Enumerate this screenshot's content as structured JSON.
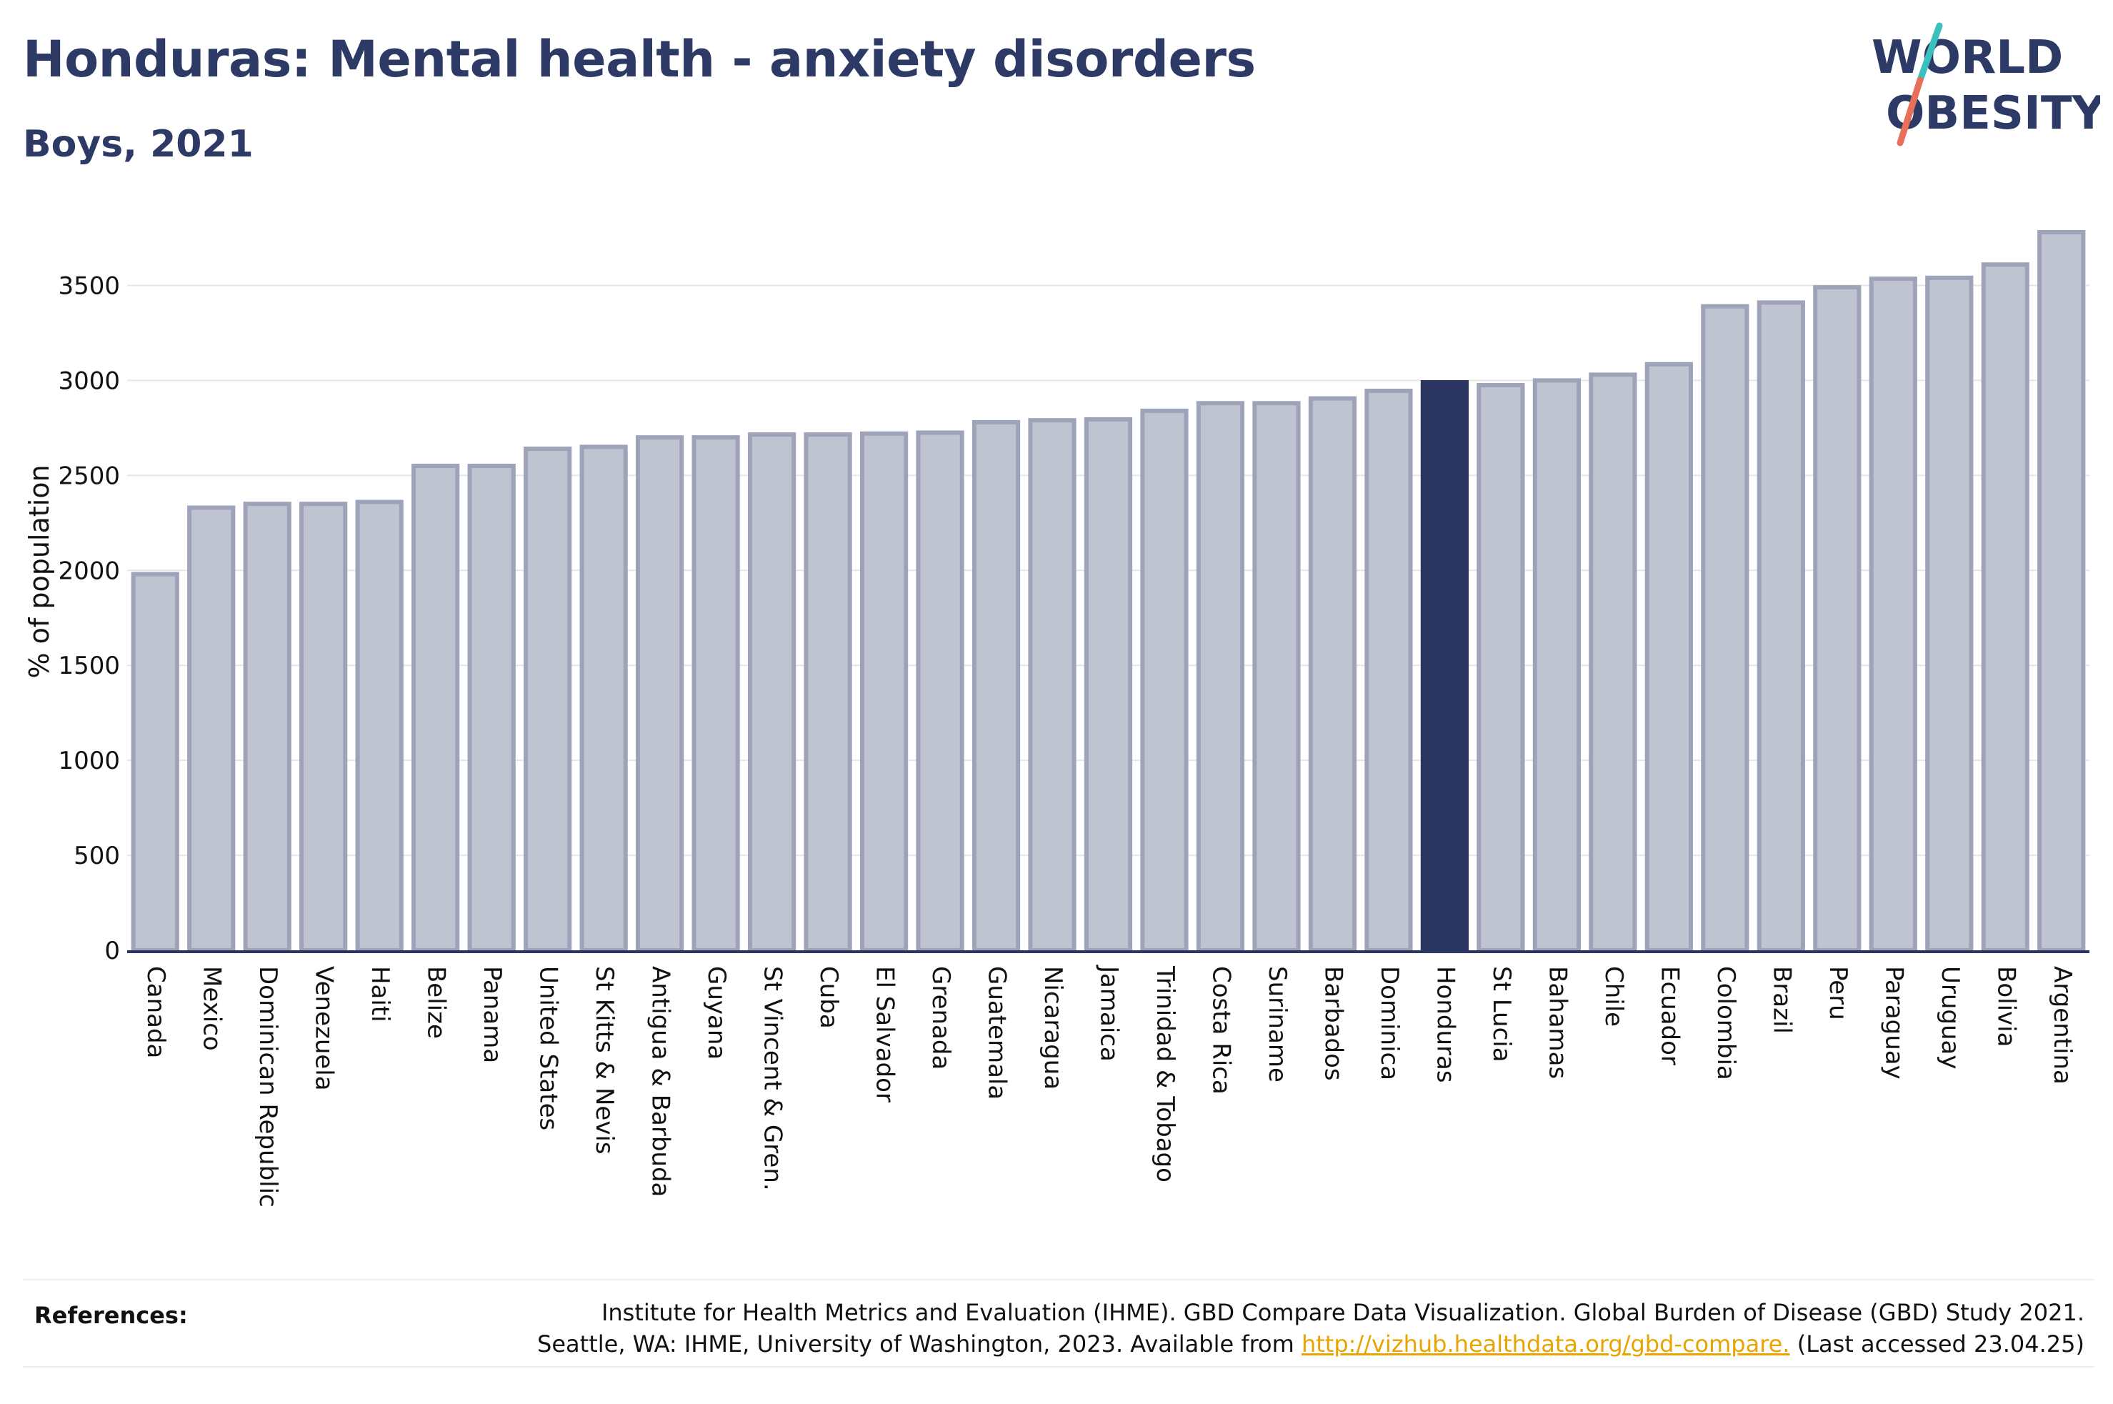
{
  "header": {
    "title": "Honduras: Mental health - anxiety disorders",
    "subtitle": "Boys, 2021"
  },
  "logo": {
    "line1": "WORLD",
    "line2": "OBESITY"
  },
  "colors": {
    "bar_default": "#c0c3d0",
    "bar_default_stroke": "#9ea3ba",
    "bar_highlight": "#2a3560",
    "axis": "#2a3560",
    "grid": "#e6e6e6",
    "logo_teal": "#3bbfbf",
    "logo_red": "#e8705a",
    "logo_text": "#2d3a66"
  },
  "chart_data": {
    "type": "bar",
    "title": "Honduras: Mental health - anxiety disorders",
    "subtitle": "Boys, 2021",
    "xlabel": "",
    "ylabel": "% of population",
    "ylim": [
      0,
      3800
    ],
    "yticks": [
      0,
      500,
      1000,
      1500,
      2000,
      2500,
      3000,
      3500
    ],
    "grid": true,
    "highlight": "Honduras",
    "categories": [
      "Canada",
      "Mexico",
      "Dominican Republic",
      "Venezuela",
      "Haiti",
      "Belize",
      "Panama",
      "United States",
      "St Kitts & Nevis",
      "Antigua & Barbuda",
      "Guyana",
      "St Vincent & Gren.",
      "Cuba",
      "El Salvador",
      "Grenada",
      "Guatemala",
      "Nicaragua",
      "Jamaica",
      "Trinidad & Tobago",
      "Costa Rica",
      "Suriname",
      "Barbados",
      "Dominica",
      "Honduras",
      "St Lucia",
      "Bahamas",
      "Chile",
      "Ecuador",
      "Colombia",
      "Brazil",
      "Peru",
      "Paraguay",
      "Uruguay",
      "Bolivia",
      "Argentina"
    ],
    "values": [
      1980,
      2330,
      2350,
      2350,
      2360,
      2550,
      2550,
      2640,
      2650,
      2700,
      2700,
      2715,
      2715,
      2720,
      2725,
      2780,
      2790,
      2795,
      2840,
      2880,
      2880,
      2905,
      2945,
      2990,
      2975,
      3000,
      3030,
      3085,
      3390,
      3410,
      3490,
      3535,
      3540,
      3610,
      3780
    ]
  },
  "references": {
    "label": "References:",
    "line1": "Institute for Health Metrics and Evaluation (IHME). GBD Compare Data Visualization. Global Burden of Disease (GBD) Study 2021.",
    "line2_prefix": "Seattle, WA: IHME, University of Washington, 2023. Available from ",
    "link": "http://vizhub.healthdata.org/gbd-compare.",
    "line2_suffix": " (Last accessed 23.04.25)"
  }
}
